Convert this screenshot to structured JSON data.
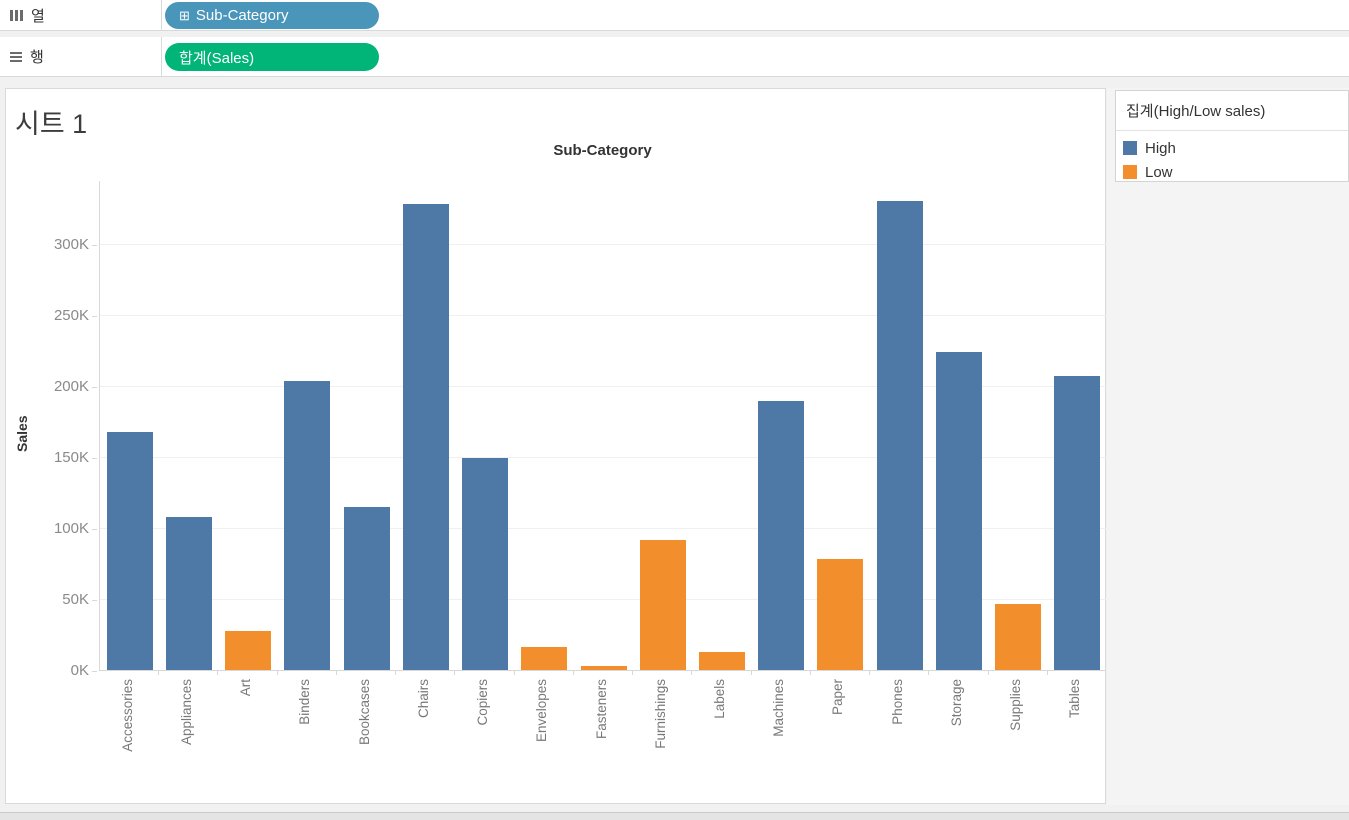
{
  "shelves": {
    "columns": {
      "label": "열",
      "pill": "Sub-Category",
      "pill_icon": "⊞",
      "pill_color": "#4a95ba"
    },
    "rows": {
      "label": "행",
      "pill": "합계(Sales)",
      "pill_color": "#00b577"
    }
  },
  "sheet": {
    "title": "시트 1"
  },
  "legend": {
    "title": "집계(High/Low sales)",
    "items": [
      {
        "label": "High",
        "color": "#4e79a7"
      },
      {
        "label": "Low",
        "color": "#f28e2b"
      }
    ]
  },
  "colors": {
    "bar_high": "#4e79a7",
    "bar_low": "#f28e2b",
    "pill_dimension": "#4a95ba",
    "pill_measure": "#00b577"
  },
  "chart_data": {
    "type": "bar",
    "title": "Sub-Category",
    "xlabel": "",
    "ylabel": "Sales",
    "categories": [
      "Accessories",
      "Appliances",
      "Art",
      "Binders",
      "Bookcases",
      "Chairs",
      "Copiers",
      "Envelopes",
      "Fasteners",
      "Furnishings",
      "Labels",
      "Machines",
      "Paper",
      "Phones",
      "Storage",
      "Supplies",
      "Tables"
    ],
    "values": [
      167380,
      107532,
      27119,
      203413,
      114880,
      328449,
      149528,
      16476,
      3024,
      91705,
      12486,
      189239,
      78479,
      330007,
      223844,
      46674,
      206966
    ],
    "groups": [
      "High",
      "High",
      "Low",
      "High",
      "High",
      "High",
      "High",
      "Low",
      "Low",
      "Low",
      "Low",
      "High",
      "Low",
      "High",
      "High",
      "Low",
      "High"
    ],
    "group_colors": {
      "High": "#4e79a7",
      "Low": "#f28e2b"
    },
    "ytick_labels": [
      "0K",
      "50K",
      "100K",
      "150K",
      "200K",
      "250K",
      "300K"
    ],
    "ytick_values": [
      0,
      50000,
      100000,
      150000,
      200000,
      250000,
      300000
    ],
    "ylim": [
      0,
      345000
    ],
    "grid": "horizontal",
    "legend_position": "top-right"
  }
}
